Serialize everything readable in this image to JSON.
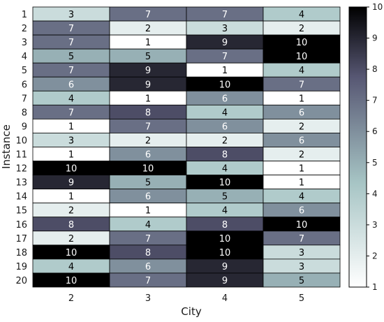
{
  "chart_data": {
    "type": "heatmap",
    "xlabel": "City",
    "ylabel": "Instance",
    "x_categories": [
      "2",
      "3",
      "4",
      "5"
    ],
    "y_categories": [
      "1",
      "2",
      "3",
      "4",
      "5",
      "6",
      "7",
      "8",
      "9",
      "10",
      "11",
      "12",
      "13",
      "14",
      "15",
      "16",
      "17",
      "18",
      "19",
      "20"
    ],
    "values": [
      [
        3,
        7,
        7,
        4
      ],
      [
        7,
        2,
        3,
        2
      ],
      [
        7,
        1,
        9,
        10
      ],
      [
        5,
        5,
        7,
        10
      ],
      [
        7,
        9,
        1,
        4
      ],
      [
        6,
        9,
        10,
        7
      ],
      [
        4,
        1,
        6,
        1
      ],
      [
        7,
        8,
        4,
        6
      ],
      [
        1,
        7,
        6,
        2
      ],
      [
        3,
        2,
        2,
        6
      ],
      [
        1,
        6,
        8,
        2
      ],
      [
        10,
        10,
        4,
        1
      ],
      [
        9,
        5,
        10,
        1
      ],
      [
        1,
        6,
        5,
        4
      ],
      [
        2,
        1,
        4,
        6
      ],
      [
        8,
        4,
        8,
        10
      ],
      [
        2,
        7,
        10,
        7
      ],
      [
        10,
        8,
        10,
        3
      ],
      [
        4,
        6,
        9,
        3
      ],
      [
        10,
        7,
        9,
        5
      ]
    ],
    "colorbar": {
      "min": 1,
      "max": 10,
      "ticks": [
        1,
        2,
        3,
        4,
        5,
        6,
        7,
        8,
        9,
        10
      ]
    },
    "colormap": "bone_r",
    "colors": [
      "#ffffff",
      "#a6c4c4",
      "#575773",
      "#000000"
    ]
  }
}
